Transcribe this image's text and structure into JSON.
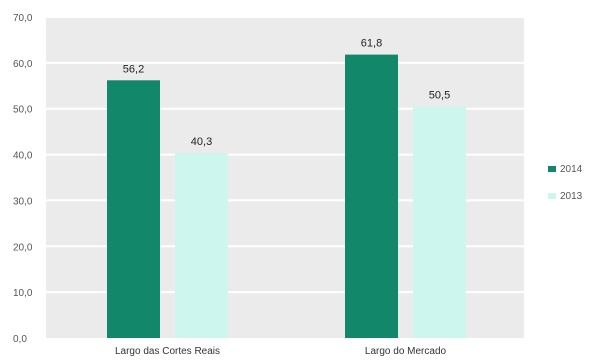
{
  "chart_data": {
    "type": "bar",
    "categories": [
      "Largo das Cortes Reais",
      "Largo do Mercado"
    ],
    "series": [
      {
        "name": "2014",
        "values": [
          56.2,
          61.8
        ],
        "labels": [
          "56,2",
          "61,8"
        ]
      },
      {
        "name": "2013",
        "values": [
          40.3,
          50.5
        ],
        "labels": [
          "40,3",
          "50,5"
        ]
      }
    ],
    "y_ticks": [
      "0,0",
      "10,0",
      "20,0",
      "30,0",
      "40,0",
      "50,0",
      "60,0",
      "70,0"
    ],
    "ylim": [
      0,
      70
    ],
    "ytick_step": 10,
    "grid": true,
    "legend_position": "right",
    "colors": {
      "2014": "#13876a",
      "2013": "#cdf6ee",
      "plot_background": "#ebebeb",
      "gridline": "#ffffff"
    }
  }
}
